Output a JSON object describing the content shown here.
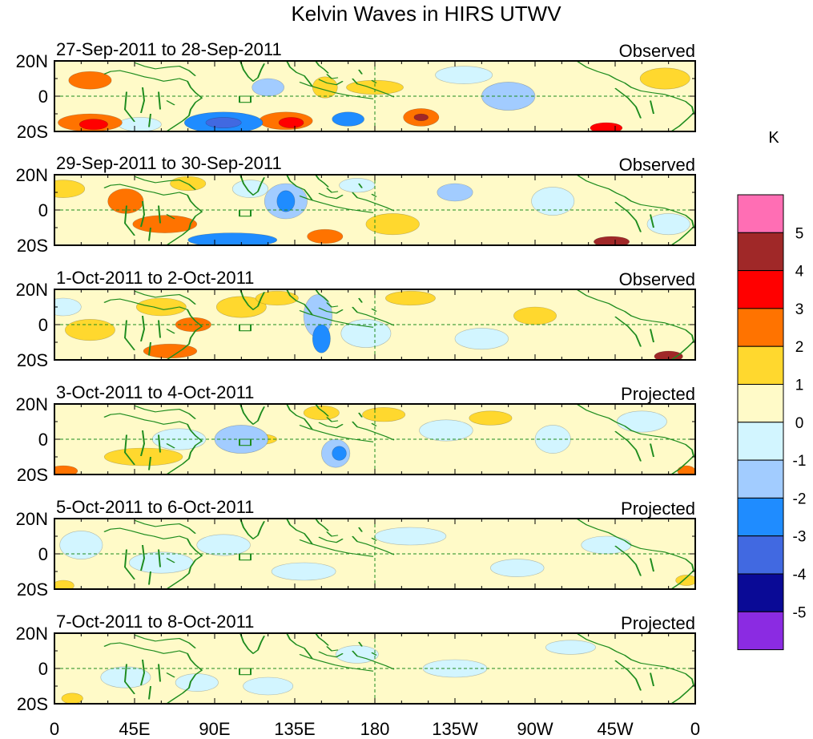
{
  "chart_data": {
    "type": "heatmap",
    "title": "Kelvin Waves in HIRS UTWV",
    "x_ticks": [
      "0",
      "45E",
      "90E",
      "135E",
      "180",
      "135W",
      "90W",
      "45W",
      "0"
    ],
    "y_ticks": [
      "20N",
      "0",
      "20S"
    ],
    "longitude_range": [
      0,
      360
    ],
    "latitude_range": [
      -20,
      20
    ],
    "colorbar": {
      "unit": "K",
      "tick_labels": [
        "5",
        "4",
        "3",
        "2",
        "1",
        "0",
        "-1",
        "-2",
        "-3",
        "-4",
        "-5"
      ],
      "colors": [
        "#ff6eb4",
        "#a02828",
        "#ff0000",
        "#ff7300",
        "#ffd82e",
        "#fffac8",
        "#d2f5ff",
        "#a2ccff",
        "#1f8cff",
        "#4169e1",
        "#0a0a96",
        "#8b2be2"
      ]
    },
    "panels": [
      {
        "date_range": "27-Sep-2011 to 28-Sep-2011",
        "status": "Observed",
        "blobs": [
          {
            "lon": 20,
            "lat": 9,
            "rx": 12,
            "ry": 5,
            "v": 2
          },
          {
            "lon": 20,
            "lat": -15,
            "rx": 18,
            "ry": 5,
            "v": 2
          },
          {
            "lon": 22,
            "lat": -16,
            "rx": 8,
            "ry": 3,
            "v": 3
          },
          {
            "lon": 48,
            "lat": -16,
            "rx": 12,
            "ry": 4,
            "v": -1
          },
          {
            "lon": 95,
            "lat": -15,
            "rx": 22,
            "ry": 6,
            "v": -3
          },
          {
            "lon": 95,
            "lat": -15,
            "rx": 10,
            "ry": 3,
            "v": -4
          },
          {
            "lon": 130,
            "lat": -14,
            "rx": 15,
            "ry": 5,
            "v": 2
          },
          {
            "lon": 133,
            "lat": -15,
            "rx": 7,
            "ry": 3,
            "v": 3
          },
          {
            "lon": 120,
            "lat": 5,
            "rx": 9,
            "ry": 5,
            "v": -2
          },
          {
            "lon": 165,
            "lat": -13,
            "rx": 9,
            "ry": 4,
            "v": -3
          },
          {
            "lon": 206,
            "lat": -12,
            "rx": 10,
            "ry": 5,
            "v": 2
          },
          {
            "lon": 206,
            "lat": -12,
            "rx": 4,
            "ry": 2,
            "v": 4
          },
          {
            "lon": 180,
            "lat": 5,
            "rx": 16,
            "ry": 4,
            "v": 1
          },
          {
            "lon": 230,
            "lat": 12,
            "rx": 16,
            "ry": 5,
            "v": -1
          },
          {
            "lon": 255,
            "lat": 0,
            "rx": 15,
            "ry": 8,
            "v": -2
          },
          {
            "lon": 310,
            "lat": -18,
            "rx": 9,
            "ry": 3,
            "v": 3
          },
          {
            "lon": 343,
            "lat": 10,
            "rx": 14,
            "ry": 6,
            "v": 1
          },
          {
            "lon": 152,
            "lat": 5,
            "rx": 7,
            "ry": 6,
            "v": 1
          }
        ]
      },
      {
        "date_range": "29-Sep-2011 to 30-Sep-2011",
        "status": "Observed",
        "blobs": [
          {
            "lon": 5,
            "lat": 12,
            "rx": 12,
            "ry": 5,
            "v": 1
          },
          {
            "lon": 40,
            "lat": 5,
            "rx": 10,
            "ry": 7,
            "v": 2
          },
          {
            "lon": 62,
            "lat": -8,
            "rx": 18,
            "ry": 5,
            "v": 2
          },
          {
            "lon": 110,
            "lat": 12,
            "rx": 10,
            "ry": 5,
            "v": -1
          },
          {
            "lon": 130,
            "lat": 5,
            "rx": 12,
            "ry": 10,
            "v": -2
          },
          {
            "lon": 130,
            "lat": 5,
            "rx": 5,
            "ry": 6,
            "v": -3
          },
          {
            "lon": 100,
            "lat": -17,
            "rx": 25,
            "ry": 4,
            "v": -3
          },
          {
            "lon": 152,
            "lat": -15,
            "rx": 10,
            "ry": 4,
            "v": 2
          },
          {
            "lon": 75,
            "lat": 15,
            "rx": 10,
            "ry": 4,
            "v": 1
          },
          {
            "lon": 190,
            "lat": -8,
            "rx": 15,
            "ry": 6,
            "v": 1
          },
          {
            "lon": 225,
            "lat": 10,
            "rx": 10,
            "ry": 5,
            "v": -2
          },
          {
            "lon": 280,
            "lat": 5,
            "rx": 12,
            "ry": 8,
            "v": -1
          },
          {
            "lon": 313,
            "lat": -18,
            "rx": 10,
            "ry": 3,
            "v": 4
          },
          {
            "lon": 345,
            "lat": -8,
            "rx": 12,
            "ry": 6,
            "v": -1
          },
          {
            "lon": 170,
            "lat": 14,
            "rx": 10,
            "ry": 4,
            "v": -1
          }
        ]
      },
      {
        "date_range": "1-Oct-2011 to 2-Oct-2011",
        "status": "Observed",
        "blobs": [
          {
            "lon": 20,
            "lat": -3,
            "rx": 14,
            "ry": 6,
            "v": 1
          },
          {
            "lon": 60,
            "lat": 10,
            "rx": 14,
            "ry": 5,
            "v": 1
          },
          {
            "lon": 78,
            "lat": 0,
            "rx": 10,
            "ry": 4,
            "v": 2
          },
          {
            "lon": 65,
            "lat": -15,
            "rx": 15,
            "ry": 4,
            "v": 2
          },
          {
            "lon": 105,
            "lat": 10,
            "rx": 14,
            "ry": 6,
            "v": 1
          },
          {
            "lon": 125,
            "lat": 15,
            "rx": 12,
            "ry": 4,
            "v": 1
          },
          {
            "lon": 148,
            "lat": 5,
            "rx": 8,
            "ry": 12,
            "v": -2
          },
          {
            "lon": 150,
            "lat": -8,
            "rx": 5,
            "ry": 8,
            "v": -3
          },
          {
            "lon": 175,
            "lat": -5,
            "rx": 14,
            "ry": 8,
            "v": -1
          },
          {
            "lon": 200,
            "lat": 15,
            "rx": 14,
            "ry": 4,
            "v": 1
          },
          {
            "lon": 240,
            "lat": -8,
            "rx": 15,
            "ry": 6,
            "v": -1
          },
          {
            "lon": 270,
            "lat": 5,
            "rx": 12,
            "ry": 5,
            "v": 1
          },
          {
            "lon": 345,
            "lat": -18,
            "rx": 8,
            "ry": 3,
            "v": 4
          },
          {
            "lon": 5,
            "lat": 10,
            "rx": 10,
            "ry": 5,
            "v": -1
          }
        ]
      },
      {
        "date_range": "3-Oct-2011 to 4-Oct-2011",
        "status": "Projected",
        "blobs": [
          {
            "lon": 5,
            "lat": -18,
            "rx": 8,
            "ry": 3,
            "v": 2
          },
          {
            "lon": 50,
            "lat": -10,
            "rx": 22,
            "ry": 5,
            "v": 1
          },
          {
            "lon": 70,
            "lat": 0,
            "rx": 15,
            "ry": 6,
            "v": -1
          },
          {
            "lon": 105,
            "lat": 0,
            "rx": 15,
            "ry": 8,
            "v": -2
          },
          {
            "lon": 115,
            "lat": 0,
            "rx": 10,
            "ry": 3,
            "v": 1
          },
          {
            "lon": 158,
            "lat": -8,
            "rx": 8,
            "ry": 8,
            "v": -2
          },
          {
            "lon": 160,
            "lat": -8,
            "rx": 4,
            "ry": 4,
            "v": -3
          },
          {
            "lon": 150,
            "lat": 15,
            "rx": 10,
            "ry": 4,
            "v": 1
          },
          {
            "lon": 185,
            "lat": 14,
            "rx": 12,
            "ry": 4,
            "v": 1
          },
          {
            "lon": 220,
            "lat": 5,
            "rx": 15,
            "ry": 6,
            "v": -1
          },
          {
            "lon": 245,
            "lat": 12,
            "rx": 12,
            "ry": 4,
            "v": 1
          },
          {
            "lon": 280,
            "lat": 0,
            "rx": 10,
            "ry": 8,
            "v": -1
          },
          {
            "lon": 330,
            "lat": 10,
            "rx": 14,
            "ry": 6,
            "v": -1
          },
          {
            "lon": 355,
            "lat": -18,
            "rx": 5,
            "ry": 3,
            "v": 2
          }
        ]
      },
      {
        "date_range": "5-Oct-2011 to 6-Oct-2011",
        "status": "Projected",
        "blobs": [
          {
            "lon": 15,
            "lat": 5,
            "rx": 12,
            "ry": 8,
            "v": -1
          },
          {
            "lon": 60,
            "lat": -5,
            "rx": 18,
            "ry": 6,
            "v": -1
          },
          {
            "lon": 95,
            "lat": 5,
            "rx": 15,
            "ry": 6,
            "v": -1
          },
          {
            "lon": 140,
            "lat": -10,
            "rx": 18,
            "ry": 5,
            "v": -1
          },
          {
            "lon": 200,
            "lat": 10,
            "rx": 20,
            "ry": 5,
            "v": -1
          },
          {
            "lon": 260,
            "lat": -8,
            "rx": 15,
            "ry": 5,
            "v": -1
          },
          {
            "lon": 310,
            "lat": 5,
            "rx": 14,
            "ry": 5,
            "v": -1
          },
          {
            "lon": 5,
            "lat": -18,
            "rx": 6,
            "ry": 3,
            "v": 1
          },
          {
            "lon": 355,
            "lat": -15,
            "rx": 6,
            "ry": 3,
            "v": 1
          }
        ]
      },
      {
        "date_range": "7-Oct-2011 to 8-Oct-2011",
        "status": "Projected",
        "blobs": [
          {
            "lon": 40,
            "lat": -5,
            "rx": 14,
            "ry": 6,
            "v": -1
          },
          {
            "lon": 80,
            "lat": -8,
            "rx": 12,
            "ry": 5,
            "v": -1
          },
          {
            "lon": 120,
            "lat": -10,
            "rx": 14,
            "ry": 5,
            "v": -1
          },
          {
            "lon": 170,
            "lat": 8,
            "rx": 12,
            "ry": 5,
            "v": -1
          },
          {
            "lon": 225,
            "lat": 0,
            "rx": 18,
            "ry": 5,
            "v": -1
          },
          {
            "lon": 290,
            "lat": 12,
            "rx": 14,
            "ry": 4,
            "v": -1
          },
          {
            "lon": 10,
            "lat": -17,
            "rx": 6,
            "ry": 3,
            "v": 1
          }
        ]
      }
    ]
  }
}
